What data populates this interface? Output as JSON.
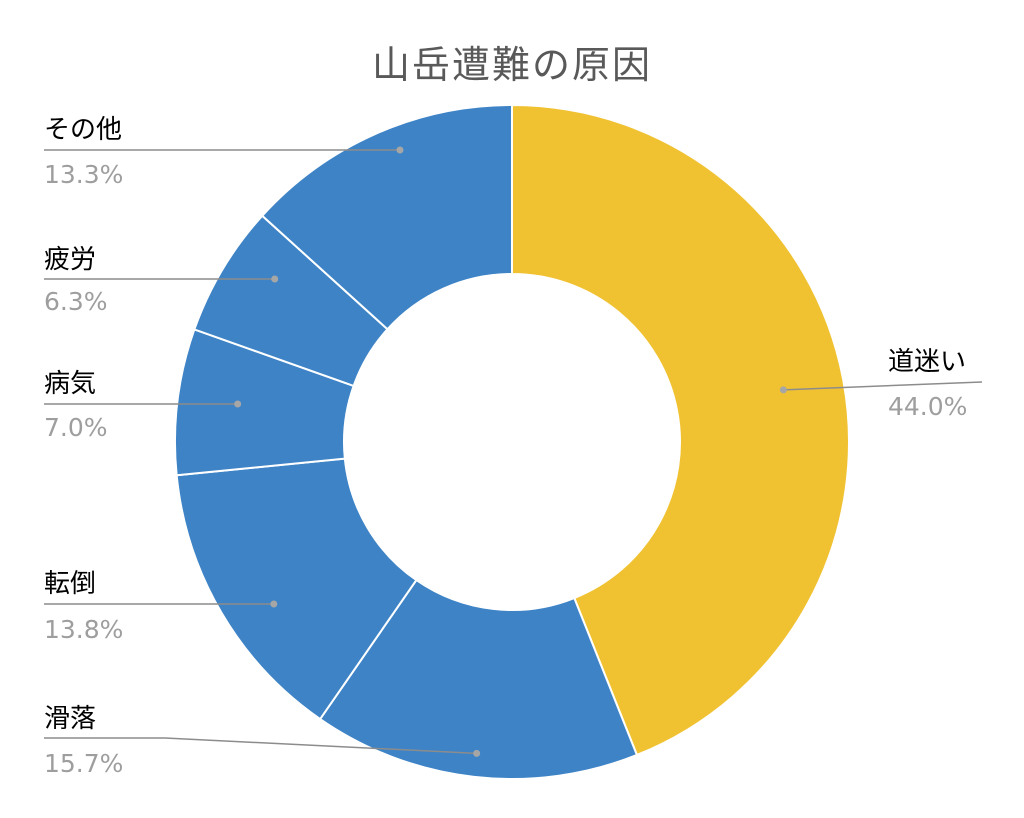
{
  "chart_data": {
    "type": "pie",
    "title": "山岳遭難の原因",
    "categories": [
      "道迷い",
      "滑落",
      "転倒",
      "病気",
      "疲労",
      "その他"
    ],
    "values": [
      44.0,
      15.7,
      13.8,
      7.0,
      6.3,
      13.3
    ],
    "value_labels": [
      "44.0%",
      "15.7%",
      "13.8%",
      "7.0%",
      "6.3%",
      "13.3%"
    ],
    "colors": [
      "#F0C232",
      "#3D83C6",
      "#3D83C6",
      "#3D83C6",
      "#3D83C6",
      "#3D83C6"
    ],
    "donut": true,
    "start": "top, clockwise"
  }
}
